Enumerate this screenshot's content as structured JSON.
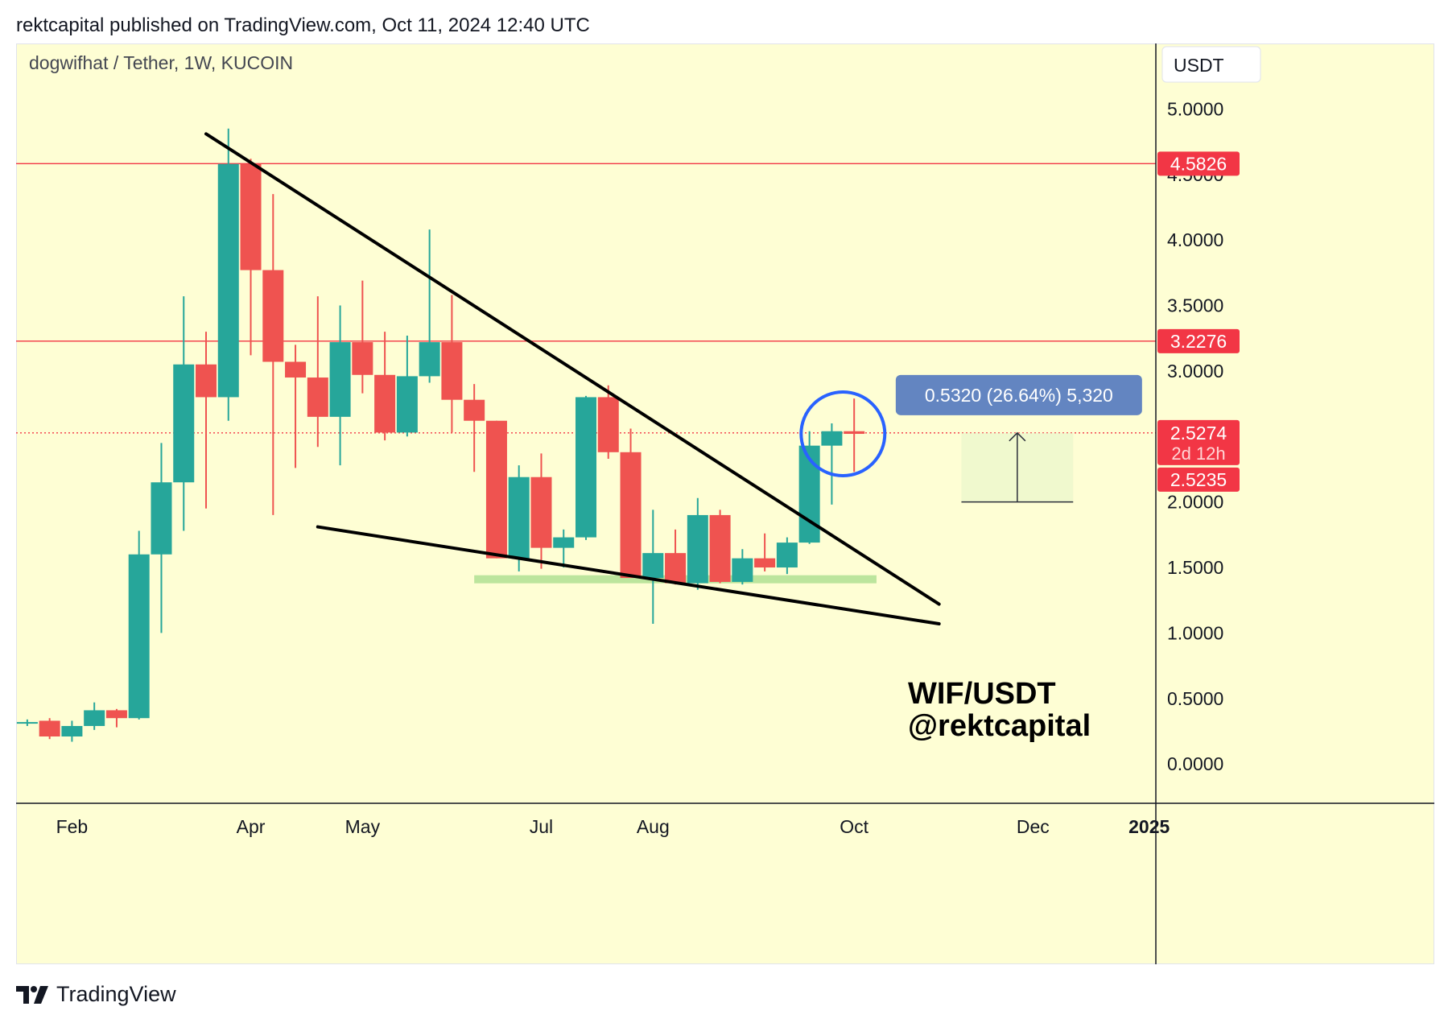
{
  "header": {
    "published": "rektcapital published on TradingView.com, Oct 11, 2024 12:40 UTC"
  },
  "footer": {
    "brand": "TradingView"
  },
  "chart_data": {
    "type": "candlestick",
    "symbol_line": "dogwifhat / Tether, 1W, KUCOIN",
    "currency_button": "USDT",
    "watermark": [
      "WIF/USDT",
      "@rektcapital"
    ],
    "y_ticks": [
      "5.0000",
      "4.5000",
      "4.0000",
      "3.5000",
      "3.0000",
      "2.0000",
      "1.5000",
      "1.0000",
      "0.5000",
      "0.0000"
    ],
    "ylim": [
      -0.3,
      5.5
    ],
    "x_ticks": [
      {
        "label": "Feb",
        "x": 2
      },
      {
        "label": "Apr",
        "x": 10
      },
      {
        "label": "May",
        "x": 15
      },
      {
        "label": "Jul",
        "x": 23
      },
      {
        "label": "Aug",
        "x": 28
      },
      {
        "label": "Oct",
        "x": 37
      },
      {
        "label": "Dec",
        "x": 45
      },
      {
        "label": "2025",
        "x": 50
      }
    ],
    "xlim": [
      -0.5,
      50.5
    ],
    "candles": [
      {
        "x": 0,
        "open": 0.32,
        "high": 0.34,
        "low": 0.29,
        "close": 0.32
      },
      {
        "x": 1,
        "open": 0.33,
        "high": 0.35,
        "low": 0.19,
        "close": 0.21
      },
      {
        "x": 2,
        "open": 0.21,
        "high": 0.33,
        "low": 0.17,
        "close": 0.29
      },
      {
        "x": 3,
        "open": 0.29,
        "high": 0.47,
        "low": 0.26,
        "close": 0.41
      },
      {
        "x": 4,
        "open": 0.41,
        "high": 0.42,
        "low": 0.28,
        "close": 0.35
      },
      {
        "x": 5,
        "open": 0.35,
        "high": 1.78,
        "low": 0.34,
        "close": 1.6
      },
      {
        "x": 6,
        "open": 1.6,
        "high": 2.45,
        "low": 1.0,
        "close": 2.15
      },
      {
        "x": 7,
        "open": 2.15,
        "high": 3.57,
        "low": 1.78,
        "close": 3.05
      },
      {
        "x": 8,
        "open": 3.05,
        "high": 3.3,
        "low": 1.95,
        "close": 2.8
      },
      {
        "x": 9,
        "open": 2.8,
        "high": 4.85,
        "low": 2.62,
        "close": 4.58
      },
      {
        "x": 10,
        "open": 4.58,
        "high": 4.62,
        "low": 3.12,
        "close": 3.77
      },
      {
        "x": 11,
        "open": 3.77,
        "high": 4.35,
        "low": 1.9,
        "close": 3.07
      },
      {
        "x": 12,
        "open": 3.07,
        "high": 3.2,
        "low": 2.26,
        "close": 2.95
      },
      {
        "x": 13,
        "open": 2.95,
        "high": 3.57,
        "low": 2.42,
        "close": 2.65
      },
      {
        "x": 14,
        "open": 2.65,
        "high": 3.5,
        "low": 2.28,
        "close": 3.22
      },
      {
        "x": 15,
        "open": 3.22,
        "high": 3.69,
        "low": 2.83,
        "close": 2.97
      },
      {
        "x": 16,
        "open": 2.97,
        "high": 3.3,
        "low": 2.47,
        "close": 2.53
      },
      {
        "x": 17,
        "open": 2.53,
        "high": 3.27,
        "low": 2.5,
        "close": 2.96
      },
      {
        "x": 18,
        "open": 2.96,
        "high": 4.08,
        "low": 2.91,
        "close": 3.22
      },
      {
        "x": 19,
        "open": 3.22,
        "high": 3.58,
        "low": 2.53,
        "close": 2.78
      },
      {
        "x": 20,
        "open": 2.78,
        "high": 2.9,
        "low": 2.23,
        "close": 2.62
      },
      {
        "x": 21,
        "open": 2.62,
        "high": 2.62,
        "low": 1.57,
        "close": 1.57
      },
      {
        "x": 22,
        "open": 1.57,
        "high": 2.28,
        "low": 1.47,
        "close": 2.19
      },
      {
        "x": 23,
        "open": 2.19,
        "high": 2.37,
        "low": 1.49,
        "close": 1.65
      },
      {
        "x": 24,
        "open": 1.65,
        "high": 1.79,
        "low": 1.5,
        "close": 1.73
      },
      {
        "x": 25,
        "open": 1.73,
        "high": 2.81,
        "low": 1.71,
        "close": 2.8
      },
      {
        "x": 26,
        "open": 2.8,
        "high": 2.89,
        "low": 2.33,
        "close": 2.38
      },
      {
        "x": 27,
        "open": 2.38,
        "high": 2.56,
        "low": 1.42,
        "close": 1.42
      },
      {
        "x": 28,
        "open": 1.42,
        "high": 1.94,
        "low": 1.07,
        "close": 1.61
      },
      {
        "x": 29,
        "open": 1.61,
        "high": 1.79,
        "low": 1.37,
        "close": 1.38
      },
      {
        "x": 30,
        "open": 1.38,
        "high": 2.03,
        "low": 1.33,
        "close": 1.9
      },
      {
        "x": 31,
        "open": 1.9,
        "high": 1.94,
        "low": 1.38,
        "close": 1.39
      },
      {
        "x": 32,
        "open": 1.39,
        "high": 1.64,
        "low": 1.37,
        "close": 1.57
      },
      {
        "x": 33,
        "open": 1.57,
        "high": 1.76,
        "low": 1.47,
        "close": 1.5
      },
      {
        "x": 34,
        "open": 1.5,
        "high": 1.73,
        "low": 1.45,
        "close": 1.69
      },
      {
        "x": 35,
        "open": 1.69,
        "high": 2.54,
        "low": 1.68,
        "close": 2.43
      },
      {
        "x": 36,
        "open": 2.43,
        "high": 2.6,
        "low": 1.98,
        "close": 2.54
      },
      {
        "x": 37,
        "open": 2.54,
        "high": 2.79,
        "low": 2.23,
        "close": 2.52
      }
    ],
    "horizontal_lines": [
      {
        "price": 4.5826,
        "label": "4.5826"
      },
      {
        "price": 3.2276,
        "label": "3.2276"
      },
      {
        "price": 2.5274,
        "label": "2.5274",
        "dotted": true
      }
    ],
    "price_labels": [
      {
        "price": 2.5274,
        "text": "2.5274",
        "sub": "2d 12h"
      },
      {
        "price": 2.5235,
        "text": "2.5235"
      }
    ],
    "trendlines": [
      {
        "x1": 8.0,
        "y1": 4.81,
        "x2": 40.8,
        "y2": 1.22
      },
      {
        "x1": 13.0,
        "y1": 1.81,
        "x2": 40.8,
        "y2": 1.07
      }
    ],
    "support_zone": {
      "x1": 20.0,
      "x2": 38.0,
      "price": 1.41
    },
    "highlight_circle": {
      "x": 36.5,
      "price": 2.52
    },
    "measure_box": {
      "x1": 41.8,
      "x2": 46.8,
      "y_low": 2.0,
      "y_high": 2.5274,
      "label": "0.5320 (26.64%) 5,320"
    }
  }
}
